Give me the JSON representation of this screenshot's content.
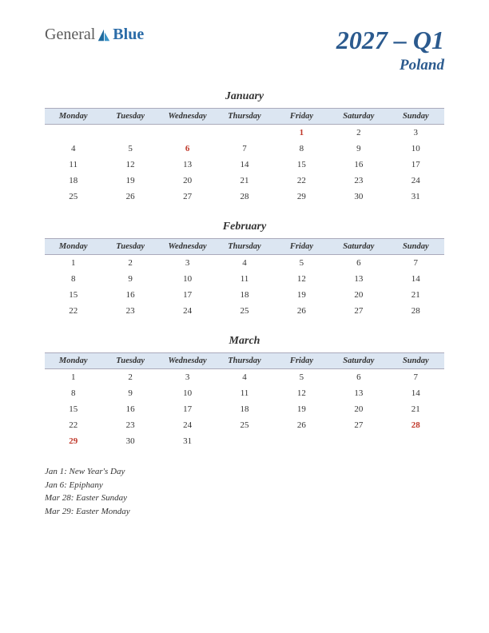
{
  "logo": {
    "general": "General",
    "blue": "Blue"
  },
  "title": {
    "year_quarter": "2027 – Q1",
    "country": "Poland"
  },
  "day_headers": [
    "Monday",
    "Tuesday",
    "Wednesday",
    "Thursday",
    "Friday",
    "Saturday",
    "Sunday"
  ],
  "colors": {
    "header_bg": "#dce6f2",
    "title_color": "#2b5a8e",
    "holiday_color": "#c0392b",
    "text_color": "#333333",
    "logo_blue": "#2b6ca8",
    "logo_gray": "#5a5a5a"
  },
  "months": [
    {
      "name": "January",
      "weeks": [
        [
          null,
          null,
          null,
          null,
          {
            "d": 1,
            "h": true
          },
          {
            "d": 2
          },
          {
            "d": 3
          }
        ],
        [
          {
            "d": 4
          },
          {
            "d": 5
          },
          {
            "d": 6,
            "h": true
          },
          {
            "d": 7
          },
          {
            "d": 8
          },
          {
            "d": 9
          },
          {
            "d": 10
          }
        ],
        [
          {
            "d": 11
          },
          {
            "d": 12
          },
          {
            "d": 13
          },
          {
            "d": 14
          },
          {
            "d": 15
          },
          {
            "d": 16
          },
          {
            "d": 17
          }
        ],
        [
          {
            "d": 18
          },
          {
            "d": 19
          },
          {
            "d": 20
          },
          {
            "d": 21
          },
          {
            "d": 22
          },
          {
            "d": 23
          },
          {
            "d": 24
          }
        ],
        [
          {
            "d": 25
          },
          {
            "d": 26
          },
          {
            "d": 27
          },
          {
            "d": 28
          },
          {
            "d": 29
          },
          {
            "d": 30
          },
          {
            "d": 31
          }
        ]
      ]
    },
    {
      "name": "February",
      "weeks": [
        [
          {
            "d": 1
          },
          {
            "d": 2
          },
          {
            "d": 3
          },
          {
            "d": 4
          },
          {
            "d": 5
          },
          {
            "d": 6
          },
          {
            "d": 7
          }
        ],
        [
          {
            "d": 8
          },
          {
            "d": 9
          },
          {
            "d": 10
          },
          {
            "d": 11
          },
          {
            "d": 12
          },
          {
            "d": 13
          },
          {
            "d": 14
          }
        ],
        [
          {
            "d": 15
          },
          {
            "d": 16
          },
          {
            "d": 17
          },
          {
            "d": 18
          },
          {
            "d": 19
          },
          {
            "d": 20
          },
          {
            "d": 21
          }
        ],
        [
          {
            "d": 22
          },
          {
            "d": 23
          },
          {
            "d": 24
          },
          {
            "d": 25
          },
          {
            "d": 26
          },
          {
            "d": 27
          },
          {
            "d": 28
          }
        ]
      ]
    },
    {
      "name": "March",
      "weeks": [
        [
          {
            "d": 1
          },
          {
            "d": 2
          },
          {
            "d": 3
          },
          {
            "d": 4
          },
          {
            "d": 5
          },
          {
            "d": 6
          },
          {
            "d": 7
          }
        ],
        [
          {
            "d": 8
          },
          {
            "d": 9
          },
          {
            "d": 10
          },
          {
            "d": 11
          },
          {
            "d": 12
          },
          {
            "d": 13
          },
          {
            "d": 14
          }
        ],
        [
          {
            "d": 15
          },
          {
            "d": 16
          },
          {
            "d": 17
          },
          {
            "d": 18
          },
          {
            "d": 19
          },
          {
            "d": 20
          },
          {
            "d": 21
          }
        ],
        [
          {
            "d": 22
          },
          {
            "d": 23
          },
          {
            "d": 24
          },
          {
            "d": 25
          },
          {
            "d": 26
          },
          {
            "d": 27
          },
          {
            "d": 28,
            "h": true
          }
        ],
        [
          {
            "d": 29,
            "h": true
          },
          {
            "d": 30
          },
          {
            "d": 31
          },
          null,
          null,
          null,
          null
        ]
      ]
    }
  ],
  "holidays": [
    "Jan 1: New Year's Day",
    "Jan 6: Epiphany",
    "Mar 28: Easter Sunday",
    "Mar 29: Easter Monday"
  ]
}
